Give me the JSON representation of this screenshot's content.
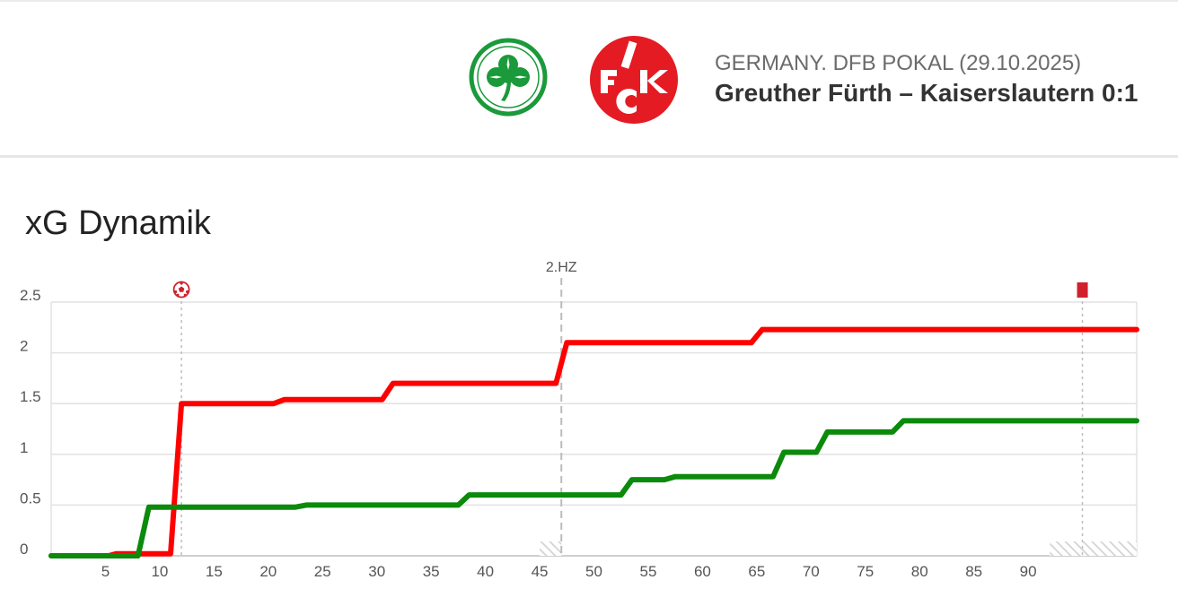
{
  "header": {
    "competition": "GERMANY. DFB POKAL (29.10.2025)",
    "match": "Greuther Fürth – Kaiserslautern 0:1",
    "home_team": {
      "crest_icon": "green-clover-crest-icon",
      "color": "#1a9a3a"
    },
    "away_team": {
      "crest_icon": "fck-crest-icon",
      "color": "#e41b23",
      "crest_text": "1FCK"
    }
  },
  "chart_title": "xG Dynamik",
  "chart_data": {
    "type": "line",
    "title": "xG Dynamik",
    "xlabel": "",
    "ylabel": "",
    "xlim": [
      0,
      100
    ],
    "ylim": [
      0,
      2.5
    ],
    "y_ticks": [
      0,
      0.5,
      1,
      1.5,
      2,
      2.5
    ],
    "y_tick_labels": [
      "0",
      "0.5",
      "1",
      "1.5",
      "2",
      "2.5"
    ],
    "x_ticks": [
      5,
      10,
      15,
      20,
      25,
      30,
      35,
      40,
      45,
      50,
      55,
      60,
      65,
      70,
      75,
      80,
      85,
      90
    ],
    "x_tick_labels": [
      "5",
      "10",
      "15",
      "20",
      "25",
      "30",
      "35",
      "40",
      "45",
      "50",
      "55",
      "60",
      "65",
      "70",
      "75",
      "80",
      "85",
      "90"
    ],
    "grid": true,
    "legend": "none",
    "series": [
      {
        "color": "#ff0000",
        "points": [
          [
            0,
            0
          ],
          [
            5.3,
            0
          ],
          [
            6,
            0.02
          ],
          [
            11,
            0.02
          ],
          [
            12,
            1.5
          ],
          [
            20.5,
            1.5
          ],
          [
            21.5,
            1.54
          ],
          [
            30.5,
            1.54
          ],
          [
            31.5,
            1.7
          ],
          [
            46.5,
            1.7
          ],
          [
            47.5,
            2.1
          ],
          [
            64.5,
            2.1
          ],
          [
            65.5,
            2.23
          ],
          [
            100,
            2.23
          ]
        ]
      },
      {
        "color": "#0b8a0b",
        "points": [
          [
            0,
            0
          ],
          [
            8,
            0
          ],
          [
            9,
            0.48
          ],
          [
            22.5,
            0.48
          ],
          [
            23.5,
            0.5
          ],
          [
            37.5,
            0.5
          ],
          [
            38.5,
            0.6
          ],
          [
            52.5,
            0.6
          ],
          [
            53.5,
            0.75
          ],
          [
            56.5,
            0.75
          ],
          [
            57.5,
            0.78
          ],
          [
            66.5,
            0.78
          ],
          [
            67.5,
            1.02
          ],
          [
            70.5,
            1.02
          ],
          [
            71.5,
            1.22
          ],
          [
            77.5,
            1.22
          ],
          [
            78.5,
            1.33
          ],
          [
            100,
            1.33
          ]
        ]
      }
    ],
    "markers": [
      {
        "x": 12,
        "type": "goal",
        "icon": "soccer-ball-icon",
        "label": ""
      },
      {
        "x": 47,
        "type": "half-time",
        "icon": "",
        "label": "2.HZ"
      },
      {
        "x": 95,
        "type": "red-card",
        "icon": "red-card-icon",
        "label": ""
      }
    ],
    "stoppage_time_bands": [
      {
        "from": 45,
        "to": 47
      },
      {
        "from": 92,
        "to": 100
      }
    ],
    "colors": {
      "grid": "#e2e2e2",
      "axis": "#bdbdbd",
      "marker_line": "#bcbcbc",
      "red_card": "#d0212b",
      "hatch": "#d3d3d3"
    }
  }
}
